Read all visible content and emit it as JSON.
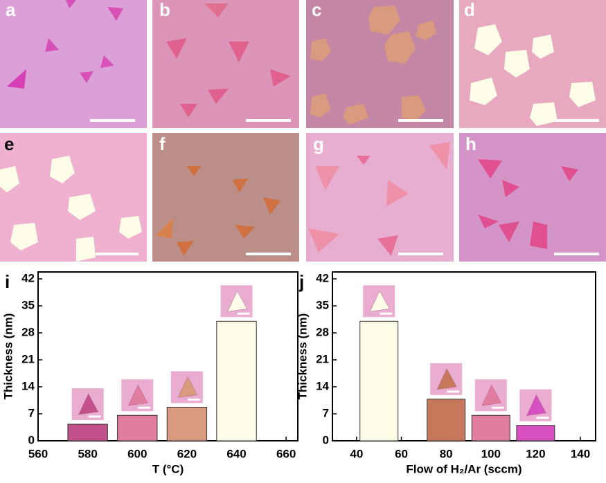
{
  "panels": [
    {
      "label": "a"
    },
    {
      "label": "b"
    },
    {
      "label": "c"
    },
    {
      "label": "d"
    },
    {
      "label": "e"
    },
    {
      "label": "f"
    },
    {
      "label": "g"
    },
    {
      "label": "h"
    }
  ],
  "chart_data": [
    {
      "type": "bar",
      "panel_label": "i",
      "xlabel": "T (°C)",
      "ylabel": "Thickness (nm)",
      "x": [
        580,
        600,
        620,
        640
      ],
      "values": [
        4.3,
        6.6,
        8.7,
        31
      ],
      "colors": [
        "#c2508a",
        "#e27da2",
        "#d99a80",
        "#fdfde8"
      ],
      "bar_width": 16,
      "xlim": [
        560,
        664.7
      ],
      "xticks": [
        560,
        580,
        600,
        620,
        640,
        660
      ],
      "ylim": [
        0,
        43.8
      ],
      "yticks": [
        0,
        7,
        14,
        21,
        28,
        35,
        42
      ]
    },
    {
      "type": "bar",
      "panel_label": "j",
      "xlabel": "Flow of H₂/Ar (sccm)",
      "ylabel": "Thickness (nm)",
      "x": [
        50,
        80,
        100,
        120
      ],
      "values": [
        31,
        10.8,
        6.6,
        4.0
      ],
      "colors": [
        "#fdfde8",
        "#c8785a",
        "#e27da2",
        "#d650c2"
      ],
      "bar_width": 17,
      "xlim": [
        29.2,
        146.8
      ],
      "xticks": [
        40,
        60,
        80,
        100,
        120,
        140
      ],
      "ylim": [
        0,
        43.8
      ],
      "yticks": [
        0,
        7,
        14,
        21,
        28,
        35,
        42
      ]
    }
  ]
}
